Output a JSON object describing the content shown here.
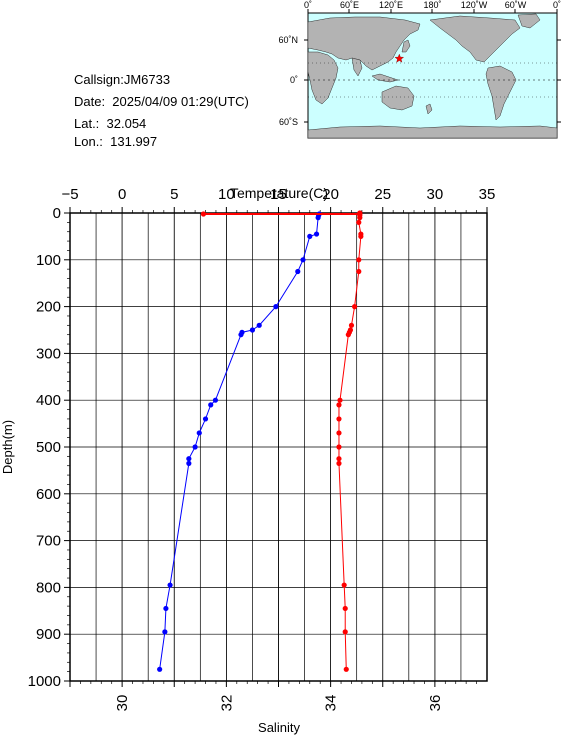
{
  "station": {
    "callsign": "Callsign:JM6733",
    "date": "Date:  2025/04/09 01:29(UTC)",
    "lat": "Lat.:  32.054",
    "lon": "Lon.:  131.997"
  },
  "map": {
    "top_labels": [
      "0˚",
      "60˚E",
      "120˚E",
      "180˚",
      "120˚W",
      "60˚W",
      "0˚"
    ],
    "left_labels": [
      "60˚N",
      "0˚",
      "60˚S"
    ],
    "ocean_color": "#ccffff",
    "land_color": "#b3b3b3",
    "marker": {
      "icon": "star-icon",
      "color": "#ff0000",
      "lat": 32.054,
      "lon": 131.997
    }
  },
  "chart_data": {
    "type": "line",
    "top_axis_label": "Temperature(C)",
    "left_axis_label": "Depth(m)",
    "bottom_axis_label": "Salinity",
    "temperature_ticks": [
      -5,
      0,
      5,
      10,
      15,
      20,
      25,
      30,
      35
    ],
    "temperature_range": [
      -5,
      35
    ],
    "salinity_ticks": [
      30,
      32,
      34,
      36
    ],
    "salinity_range": [
      29,
      37
    ],
    "depth_ticks": [
      0,
      100,
      200,
      300,
      400,
      500,
      600,
      700,
      800,
      900,
      1000
    ],
    "depth_range": [
      0,
      1000
    ],
    "grid": true,
    "series": [
      {
        "color": "#ff0000",
        "axis": "temperature",
        "points": [
          {
            "depth": 0,
            "value": 22.8
          },
          {
            "depth": 2,
            "value": 22.8
          },
          {
            "depth": 5,
            "value": 22.8
          },
          {
            "depth": 10,
            "value": 22.8
          },
          {
            "depth": 20,
            "value": 22.7
          },
          {
            "depth": 45,
            "value": 22.9
          },
          {
            "depth": 50,
            "value": 22.9
          },
          {
            "depth": 100,
            "value": 22.7
          },
          {
            "depth": 125,
            "value": 22.7
          },
          {
            "depth": 200,
            "value": 22.3
          },
          {
            "depth": 240,
            "value": 22.0
          },
          {
            "depth": 250,
            "value": 21.9
          },
          {
            "depth": 255,
            "value": 21.8
          },
          {
            "depth": 260,
            "value": 21.7
          },
          {
            "depth": 400,
            "value": 20.9
          },
          {
            "depth": 410,
            "value": 20.8
          },
          {
            "depth": 440,
            "value": 20.8
          },
          {
            "depth": 470,
            "value": 20.8
          },
          {
            "depth": 500,
            "value": 20.8
          },
          {
            "depth": 525,
            "value": 20.8
          },
          {
            "depth": 535,
            "value": 20.8
          },
          {
            "depth": 795,
            "value": 21.3
          },
          {
            "depth": 845,
            "value": 21.4
          },
          {
            "depth": 895,
            "value": 21.4
          },
          {
            "depth": 975,
            "value": 21.5
          }
        ]
      },
      {
        "color": "#0000ff",
        "axis": "salinity",
        "points": [
          {
            "depth": 2,
            "value": 33.78
          },
          {
            "depth": 5,
            "value": 33.77
          },
          {
            "depth": 10,
            "value": 33.76
          },
          {
            "depth": 45,
            "value": 33.73
          },
          {
            "depth": 50,
            "value": 33.6
          },
          {
            "depth": 100,
            "value": 33.47
          },
          {
            "depth": 125,
            "value": 33.37
          },
          {
            "depth": 200,
            "value": 32.95
          },
          {
            "depth": 240,
            "value": 32.63
          },
          {
            "depth": 250,
            "value": 32.5
          },
          {
            "depth": 255,
            "value": 32.3
          },
          {
            "depth": 260,
            "value": 32.28
          },
          {
            "depth": 400,
            "value": 31.79
          },
          {
            "depth": 410,
            "value": 31.7
          },
          {
            "depth": 440,
            "value": 31.6
          },
          {
            "depth": 470,
            "value": 31.48
          },
          {
            "depth": 500,
            "value": 31.4
          },
          {
            "depth": 525,
            "value": 31.28
          },
          {
            "depth": 535,
            "value": 31.28
          },
          {
            "depth": 795,
            "value": 30.92
          },
          {
            "depth": 845,
            "value": 30.84
          },
          {
            "depth": 895,
            "value": 30.82
          },
          {
            "depth": 975,
            "value": 30.72
          }
        ]
      }
    ],
    "surface_flag": {
      "color": "#ff0000",
      "from_temperature": 7.8,
      "to_temperature": 22.8,
      "depth": 0
    }
  }
}
